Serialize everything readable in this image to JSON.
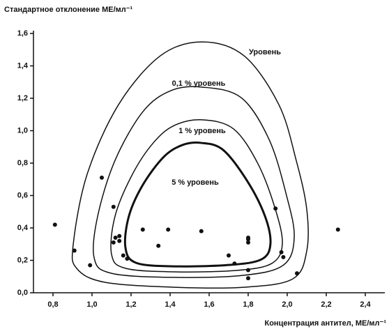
{
  "chart_data": {
    "type": "scatter",
    "title": "Стандартное отклонение МЕ/мл⁻¹",
    "x_label": "Концентрация антител, МЕ/мл⁻¹",
    "xlim": [
      0.7,
      2.5
    ],
    "ylim": [
      0,
      1.6
    ],
    "xticks": [
      {
        "value": 0.8,
        "label": "0,8"
      },
      {
        "value": 1.0,
        "label": "1,0"
      },
      {
        "value": 1.2,
        "label": "1,2"
      },
      {
        "value": 1.4,
        "label": "1,4"
      },
      {
        "value": 1.6,
        "label": "1,6"
      },
      {
        "value": 1.8,
        "label": "1,8"
      },
      {
        "value": 2.0,
        "label": "2,0"
      },
      {
        "value": 2.2,
        "label": "2,2"
      },
      {
        "value": 2.4,
        "label": "2,4"
      }
    ],
    "yticks": [
      {
        "value": 0,
        "label": "0,0"
      },
      {
        "value": 0.2,
        "label": "0,2"
      },
      {
        "value": 0.4,
        "label": "0,4"
      },
      {
        "value": 0.6,
        "label": "0,6"
      },
      {
        "value": 0.8,
        "label": "0,8"
      },
      {
        "value": 1.0,
        "label": "1,0"
      },
      {
        "value": 1.2,
        "label": "1,2"
      },
      {
        "value": 1.4,
        "label": "1,4"
      },
      {
        "value": 1.6,
        "label": "1,6"
      }
    ],
    "color": "#111111",
    "x": [
      0.81,
      0.91,
      0.99,
      1.05,
      1.11,
      1.11,
      1.12,
      1.14,
      1.14,
      1.16,
      1.18,
      1.26,
      1.34,
      1.39,
      1.56,
      1.7,
      1.73,
      1.8,
      1.8,
      1.8,
      1.8,
      1.8,
      1.94,
      1.97,
      1.98,
      2.05,
      2.26
    ],
    "values": [
      0.42,
      0.26,
      0.17,
      0.71,
      0.53,
      0.31,
      0.34,
      0.35,
      0.32,
      0.23,
      0.21,
      0.39,
      0.29,
      0.39,
      0.38,
      0.23,
      0.18,
      0.34,
      0.33,
      0.31,
      0.14,
      0.09,
      0.52,
      0.25,
      0.22,
      0.12,
      0.39
    ],
    "contours": [
      {
        "name": "Уровень",
        "width": 1.5,
        "x": [
          1.564,
          1.779,
          1.957,
          2.046,
          2.1,
          2.1,
          2.029,
          1.779,
          1.421,
          1.064,
          0.921,
          0.904,
          0.975,
          1.136,
          1.35
        ],
        "values": [
          1.548,
          1.462,
          1.161,
          0.817,
          0.516,
          0.258,
          0.086,
          0.034,
          0.034,
          0.065,
          0.151,
          0.301,
          0.731,
          1.161,
          1.462
        ]
      },
      {
        "name": "0,1 % уровень",
        "width": 1.5,
        "x": [
          1.564,
          1.764,
          1.907,
          1.996,
          2.036,
          1.982,
          1.779,
          1.421,
          1.1,
          1.011,
          1.029,
          1.118,
          1.261,
          1.404
        ],
        "values": [
          1.269,
          1.204,
          0.946,
          0.602,
          0.344,
          0.172,
          0.108,
          0.095,
          0.12,
          0.215,
          0.473,
          0.817,
          1.118,
          1.247
        ]
      },
      {
        "name": "1 % уровень",
        "width": 1.5,
        "x": [
          1.564,
          1.725,
          1.85,
          1.939,
          1.975,
          1.921,
          1.743,
          1.421,
          1.171,
          1.1,
          1.118,
          1.207,
          1.314,
          1.421
        ],
        "values": [
          1.067,
          1.011,
          0.796,
          0.516,
          0.301,
          0.181,
          0.138,
          0.129,
          0.151,
          0.237,
          0.473,
          0.731,
          0.925,
          1.032
        ]
      },
      {
        "name": "5 % уровень",
        "width": 3,
        "x": [
          1.557,
          1.671,
          1.796,
          1.886,
          1.914,
          1.868,
          1.707,
          1.421,
          1.225,
          1.171,
          1.189,
          1.261,
          1.368,
          1.464
        ],
        "values": [
          0.925,
          0.882,
          0.688,
          0.473,
          0.301,
          0.206,
          0.172,
          0.163,
          0.185,
          0.28,
          0.473,
          0.667,
          0.839,
          0.912
        ]
      }
    ]
  }
}
